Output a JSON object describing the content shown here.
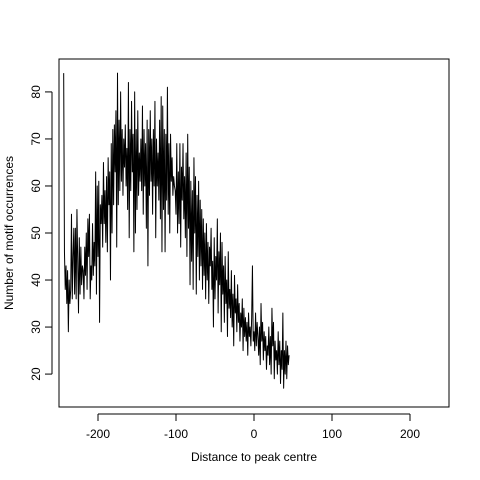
{
  "chart_data": {
    "type": "line",
    "title": "",
    "xlabel": "Distance to peak centre",
    "ylabel": "Number of motif occurrences",
    "xlim": [
      -250,
      250
    ],
    "ylim": [
      13,
      87
    ],
    "xticks": [
      -200,
      -100,
      0,
      100,
      200
    ],
    "yticks": [
      20,
      30,
      40,
      50,
      60,
      70,
      80
    ],
    "grid": false,
    "legend": "none",
    "line_color": "#000000",
    "series": [
      {
        "x_start": -244,
        "x_step": 1,
        "values": [
          84,
          46,
          38,
          43,
          35,
          42,
          29,
          40,
          35,
          38,
          54,
          36,
          45,
          51,
          37,
          51,
          36,
          55,
          44,
          33,
          49,
          37,
          47,
          39,
          43,
          42,
          36,
          47,
          41,
          50,
          38,
          53,
          45,
          54,
          36,
          43,
          40,
          52,
          41,
          48,
          43,
          63,
          37,
          60,
          45,
          61,
          31,
          56,
          52,
          58,
          47,
          65,
          52,
          59,
          48,
          62,
          46,
          66,
          56,
          63,
          40,
          69,
          50,
          72,
          56,
          73,
          63,
          76,
          47,
          84,
          56,
          74,
          59,
          80,
          61,
          72,
          58,
          70,
          64,
          73,
          60,
          68,
          55,
          82,
          49,
          72,
          59,
          78,
          63,
          71,
          46,
          80,
          50,
          72,
          55,
          76,
          58,
          67,
          61,
          70,
          59,
          77,
          54,
          72,
          60,
          69,
          51,
          74,
          43,
          72,
          58,
          76,
          61,
          70,
          54,
          72,
          60,
          78,
          49,
          70,
          60,
          67,
          57,
          74,
          53,
          79,
          46,
          77,
          55,
          72,
          46,
          71,
          57,
          81,
          54,
          69,
          50,
          71,
          61,
          66,
          58,
          62,
          60,
          59,
          54,
          69,
          50,
          63,
          52,
          69,
          47,
          64,
          57,
          69,
          53,
          62,
          49,
          67,
          45,
          71,
          51,
          64,
          39,
          61,
          44,
          59,
          38,
          66,
          50,
          62,
          37,
          58,
          45,
          61,
          40,
          57,
          43,
          55,
          38,
          53,
          41,
          50,
          36,
          52,
          40,
          48,
          35,
          47,
          43,
          51,
          38,
          44,
          30,
          49,
          36,
          45,
          40,
          53,
          33,
          46,
          39,
          50,
          29,
          48,
          37,
          43,
          31,
          45,
          35,
          40,
          28,
          46,
          34,
          38,
          32,
          42,
          30,
          37,
          26,
          41,
          33,
          36,
          29,
          39,
          31,
          35,
          27,
          33,
          30,
          36,
          25,
          34,
          28,
          32,
          27,
          31,
          24,
          33,
          28,
          30,
          26,
          32,
          43,
          27,
          29,
          25,
          33,
          26,
          31,
          28,
          24,
          30,
          22,
          35,
          27,
          31,
          23,
          29,
          25,
          28,
          21,
          26,
          24,
          30,
          22,
          28,
          20,
          34,
          26,
          31,
          19,
          27,
          23,
          25,
          20,
          29,
          22,
          27,
          18,
          25,
          21,
          33,
          17,
          25,
          20,
          27,
          19,
          26,
          22,
          24
        ]
      }
    ]
  }
}
